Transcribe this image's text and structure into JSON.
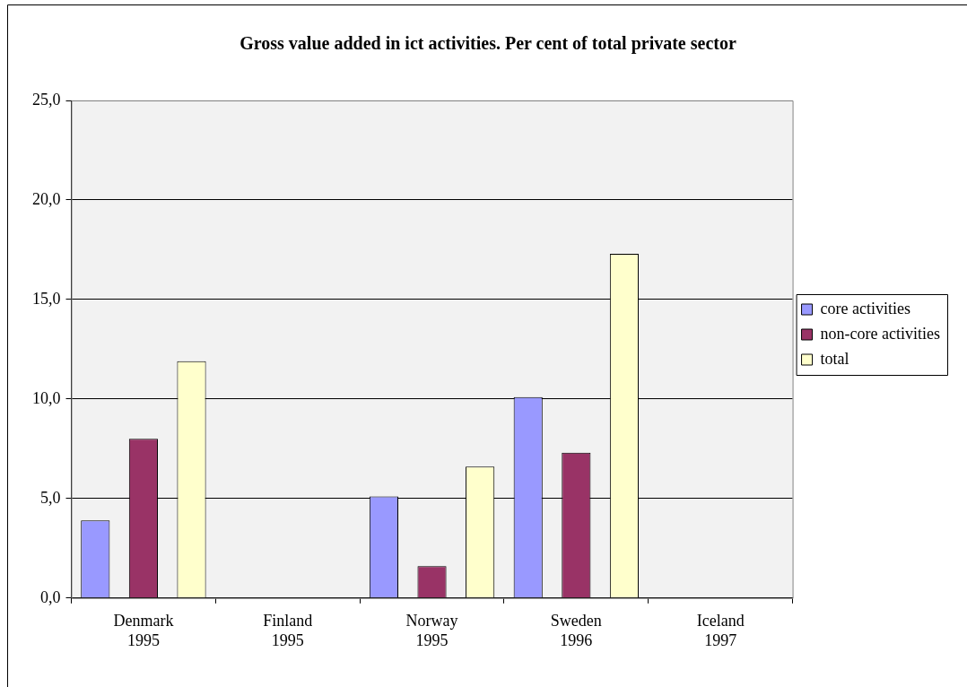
{
  "chart_data": {
    "type": "bar",
    "title": "Gross value added in ict activities. Per cent of total private sector",
    "categories": [
      "Denmark\n1995",
      "Finland\n1995",
      "Norway\n1995",
      "Sweden\n1996",
      "Iceland\n1997"
    ],
    "series": [
      {
        "name": "core activities",
        "color": "#9999ff",
        "values": [
          3.9,
          null,
          5.1,
          10.1,
          null
        ]
      },
      {
        "name": "non-core activities",
        "color": "#993366",
        "values": [
          8.0,
          null,
          1.6,
          7.3,
          null
        ]
      },
      {
        "name": "total",
        "color": "#ffffcc",
        "values": [
          11.9,
          null,
          6.6,
          17.3,
          null
        ]
      }
    ],
    "ylim": [
      0,
      25
    ],
    "yticks": [
      {
        "value": 0,
        "label": "0,0"
      },
      {
        "value": 5,
        "label": "5,0"
      },
      {
        "value": 10,
        "label": "10,0"
      },
      {
        "value": 15,
        "label": "15,0"
      },
      {
        "value": 20,
        "label": "20,0"
      },
      {
        "value": 25,
        "label": "25,0"
      }
    ],
    "grid": "y",
    "legend": "right"
  }
}
